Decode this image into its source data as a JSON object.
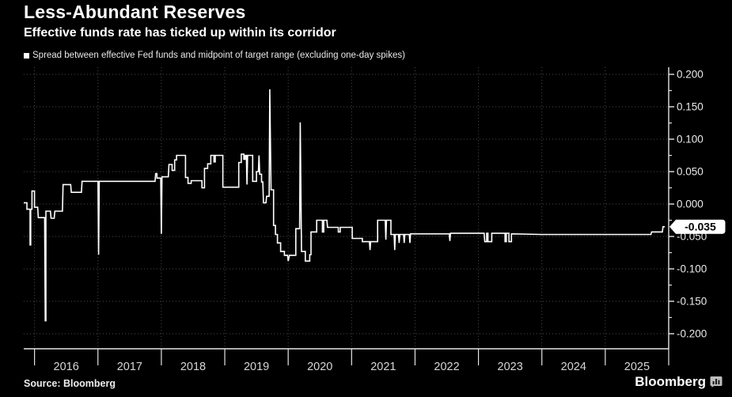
{
  "header": {
    "title": "Less-Abundant Reserves",
    "subtitle": "Effective funds rate has ticked up within its corridor"
  },
  "legend": {
    "label": "Spread between effective Fed funds and midpoint of target range (excluding one-day spikes)"
  },
  "footer": {
    "source": "Source: Bloomberg",
    "brand": "Bloomberg"
  },
  "colors": {
    "background": "#000000",
    "line": "#ffffff",
    "grid": "#4b4b4b",
    "axis": "#e5e5e5",
    "x_tick_label": "#d6d6d6",
    "y_tick_label": "#e9e9e9",
    "callout_bg": "#ffffff",
    "callout_text": "#000000"
  },
  "chart_data": {
    "type": "line",
    "title": "Less-Abundant Reserves",
    "subtitle": "Effective funds rate has ticked up within its corridor",
    "legend_position": "top-left",
    "grid": {
      "horizontal": true,
      "vertical": true,
      "style": "dotted"
    },
    "x_axis": {
      "range": [
        2015.83,
        2026.0
      ],
      "ticks": [
        2016,
        2017,
        2018,
        2019,
        2020,
        2021,
        2022,
        2023,
        2024,
        2025
      ],
      "tick_labels": [
        "2016",
        "2017",
        "2018",
        "2019",
        "2020",
        "2021",
        "2022",
        "2023",
        "2024",
        "2025"
      ],
      "label_placement": "between-ticks"
    },
    "y_axis": {
      "side": "right",
      "range": [
        -0.2232,
        0.211
      ],
      "tick_values": [
        0.2,
        0.15,
        0.1,
        0.05,
        0.0,
        -0.05,
        -0.1,
        -0.15,
        -0.2
      ],
      "tick_labels": [
        "0.200",
        "0.150",
        "0.100",
        "0.050",
        "0.000",
        "-0.050",
        "-0.100",
        "-0.150",
        "-0.200"
      ],
      "minor_tick_values": [
        0.175,
        0.125,
        0.075,
        0.025,
        -0.025,
        -0.075,
        -0.125,
        -0.175
      ]
    },
    "last_value_callout": {
      "text": "-0.035",
      "value": -0.035
    },
    "series": [
      {
        "name": "Spread between effective Fed funds and midpoint of target range (excluding one-day spikes)",
        "color": "#ffffff",
        "points": [
          [
            2015.83,
            0.002
          ],
          [
            2015.88,
            0.002
          ],
          [
            2015.88,
            -0.008
          ],
          [
            2015.93,
            -0.008
          ],
          [
            2015.93,
            -0.063
          ],
          [
            2015.94,
            -0.063
          ],
          [
            2015.94,
            -0.008
          ],
          [
            2015.96,
            -0.008
          ],
          [
            2015.96,
            0.02
          ],
          [
            2016.0,
            0.02
          ],
          [
            2016.0,
            -0.005
          ],
          [
            2016.05,
            -0.005
          ],
          [
            2016.06,
            -0.021
          ],
          [
            2016.16,
            -0.021
          ],
          [
            2016.17,
            -0.18
          ],
          [
            2016.18,
            -0.18
          ],
          [
            2016.18,
            -0.011
          ],
          [
            2016.25,
            -0.011
          ],
          [
            2016.26,
            -0.022
          ],
          [
            2016.31,
            -0.022
          ],
          [
            2016.32,
            -0.011
          ],
          [
            2016.44,
            -0.011
          ],
          [
            2016.45,
            0.03
          ],
          [
            2016.57,
            0.03
          ],
          [
            2016.58,
            0.018
          ],
          [
            2016.74,
            0.018
          ],
          [
            2016.75,
            0.035
          ],
          [
            2017.0,
            0.035
          ],
          [
            2017.01,
            -0.078
          ],
          [
            2017.02,
            0.035
          ],
          [
            2017.9,
            0.035
          ],
          [
            2017.91,
            0.047
          ],
          [
            2017.93,
            0.047
          ],
          [
            2017.93,
            0.04
          ],
          [
            2017.99,
            0.04
          ],
          [
            2018.0,
            -0.046
          ],
          [
            2018.01,
            0.042
          ],
          [
            2018.11,
            0.042
          ],
          [
            2018.12,
            0.061
          ],
          [
            2018.17,
            0.061
          ],
          [
            2018.17,
            0.052
          ],
          [
            2018.21,
            0.052
          ],
          [
            2018.21,
            0.068
          ],
          [
            2018.24,
            0.068
          ],
          [
            2018.24,
            0.075
          ],
          [
            2018.38,
            0.075
          ],
          [
            2018.38,
            0.041
          ],
          [
            2018.42,
            0.041
          ],
          [
            2018.42,
            0.032
          ],
          [
            2018.47,
            0.032
          ],
          [
            2018.47,
            0.036
          ],
          [
            2018.64,
            0.036
          ],
          [
            2018.64,
            0.025
          ],
          [
            2018.68,
            0.025
          ],
          [
            2018.68,
            0.055
          ],
          [
            2018.73,
            0.055
          ],
          [
            2018.73,
            0.062
          ],
          [
            2018.78,
            0.062
          ],
          [
            2018.78,
            0.075
          ],
          [
            2018.83,
            0.075
          ],
          [
            2018.83,
            0.065
          ],
          [
            2018.85,
            0.065
          ],
          [
            2018.85,
            0.075
          ],
          [
            2018.97,
            0.075
          ],
          [
            2018.97,
            0.026
          ],
          [
            2019.22,
            0.026
          ],
          [
            2019.22,
            0.064
          ],
          [
            2019.26,
            0.064
          ],
          [
            2019.26,
            0.077
          ],
          [
            2019.3,
            0.077
          ],
          [
            2019.3,
            0.069
          ],
          [
            2019.32,
            0.069
          ],
          [
            2019.32,
            0.075
          ],
          [
            2019.34,
            0.075
          ],
          [
            2019.35,
            0.03
          ],
          [
            2019.36,
            0.075
          ],
          [
            2019.44,
            0.075
          ],
          [
            2019.44,
            0.035
          ],
          [
            2019.5,
            0.035
          ],
          [
            2019.5,
            0.05
          ],
          [
            2019.53,
            0.05
          ],
          [
            2019.54,
            0.075
          ],
          [
            2019.55,
            0.05
          ],
          [
            2019.55,
            0.046
          ],
          [
            2019.58,
            0.046
          ],
          [
            2019.58,
            0.034
          ],
          [
            2019.6,
            0.034
          ],
          [
            2019.61,
            0.002
          ],
          [
            2019.65,
            0.002
          ],
          [
            2019.66,
            0.012
          ],
          [
            2019.7,
            0.012
          ],
          [
            2019.71,
            0.177
          ],
          [
            2019.73,
            0.022
          ],
          [
            2019.77,
            0.022
          ],
          [
            2019.77,
            -0.033
          ],
          [
            2019.8,
            -0.033
          ],
          [
            2019.8,
            -0.047
          ],
          [
            2019.83,
            -0.047
          ],
          [
            2019.83,
            -0.06
          ],
          [
            2019.88,
            -0.06
          ],
          [
            2019.88,
            -0.073
          ],
          [
            2019.94,
            -0.073
          ],
          [
            2019.94,
            -0.079
          ],
          [
            2019.99,
            -0.079
          ],
          [
            2020.0,
            -0.088
          ],
          [
            2020.02,
            -0.079
          ],
          [
            2020.12,
            -0.079
          ],
          [
            2020.12,
            -0.038
          ],
          [
            2020.18,
            -0.038
          ],
          [
            2020.19,
            0.126
          ],
          [
            2020.21,
            -0.073
          ],
          [
            2020.27,
            -0.073
          ],
          [
            2020.27,
            -0.088
          ],
          [
            2020.34,
            -0.088
          ],
          [
            2020.34,
            -0.078
          ],
          [
            2020.36,
            -0.078
          ],
          [
            2020.36,
            -0.043
          ],
          [
            2020.45,
            -0.043
          ],
          [
            2020.45,
            -0.025
          ],
          [
            2020.54,
            -0.025
          ],
          [
            2020.54,
            -0.043
          ],
          [
            2020.56,
            -0.043
          ],
          [
            2020.56,
            -0.025
          ],
          [
            2020.61,
            -0.025
          ],
          [
            2020.62,
            -0.036
          ],
          [
            2020.79,
            -0.036
          ],
          [
            2020.79,
            -0.043
          ],
          [
            2020.82,
            -0.043
          ],
          [
            2020.82,
            -0.036
          ],
          [
            2021.01,
            -0.036
          ],
          [
            2021.01,
            -0.053
          ],
          [
            2021.17,
            -0.053
          ],
          [
            2021.17,
            -0.058
          ],
          [
            2021.28,
            -0.058
          ],
          [
            2021.29,
            -0.071
          ],
          [
            2021.3,
            -0.058
          ],
          [
            2021.41,
            -0.058
          ],
          [
            2021.41,
            -0.025
          ],
          [
            2021.53,
            -0.025
          ],
          [
            2021.54,
            -0.055
          ],
          [
            2021.55,
            -0.025
          ],
          [
            2021.62,
            -0.025
          ],
          [
            2021.62,
            -0.047
          ],
          [
            2021.67,
            -0.047
          ],
          [
            2021.68,
            -0.071
          ],
          [
            2021.69,
            -0.047
          ],
          [
            2021.74,
            -0.047
          ],
          [
            2021.75,
            -0.06
          ],
          [
            2021.76,
            -0.047
          ],
          [
            2021.82,
            -0.047
          ],
          [
            2021.83,
            -0.06
          ],
          [
            2021.84,
            -0.047
          ],
          [
            2021.91,
            -0.047
          ],
          [
            2021.92,
            -0.06
          ],
          [
            2021.93,
            -0.046
          ],
          [
            2022.54,
            -0.046
          ],
          [
            2022.55,
            -0.057
          ],
          [
            2022.56,
            -0.045
          ],
          [
            2023.09,
            -0.045
          ],
          [
            2023.1,
            -0.058
          ],
          [
            2023.13,
            -0.058
          ],
          [
            2023.13,
            -0.045
          ],
          [
            2023.15,
            -0.045
          ],
          [
            2023.15,
            -0.058
          ],
          [
            2023.21,
            -0.058
          ],
          [
            2023.21,
            -0.045
          ],
          [
            2023.42,
            -0.045
          ],
          [
            2023.42,
            -0.058
          ],
          [
            2023.44,
            -0.058
          ],
          [
            2023.44,
            -0.045
          ],
          [
            2023.48,
            -0.045
          ],
          [
            2023.48,
            -0.058
          ],
          [
            2023.52,
            -0.058
          ],
          [
            2023.52,
            -0.046
          ],
          [
            2024.0,
            -0.047
          ],
          [
            2025.72,
            -0.047
          ],
          [
            2025.73,
            -0.043
          ],
          [
            2025.9,
            -0.043
          ],
          [
            2025.91,
            -0.035
          ],
          [
            2025.94,
            -0.035
          ]
        ]
      }
    ]
  }
}
